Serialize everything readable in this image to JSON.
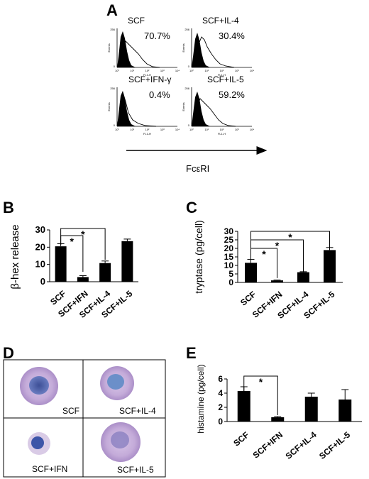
{
  "panel_letters": {
    "a": "A",
    "b": "B",
    "c": "C",
    "d": "D",
    "e": "E"
  },
  "flow": {
    "x_tick_labels": [
      "10⁰",
      "10¹",
      "10²",
      "10³",
      "10⁴"
    ],
    "x_axis_small_label": "FL1-H",
    "y_axis_small_label": "Events",
    "y_max_label": "256",
    "y_min_label": "0",
    "arrow_label": "FcεRI",
    "panels": [
      {
        "label": "SCF",
        "percent": "70.7%"
      },
      {
        "label": "SCF+IL-4",
        "percent": "30.4%"
      },
      {
        "label": "SCF+IFN-γ",
        "percent": "0.4%"
      },
      {
        "label": "SCF+IL-5",
        "percent": "59.2%"
      }
    ]
  },
  "chart_data": [
    {
      "id": "B",
      "type": "bar",
      "categories": [
        "SCF",
        "SCF+IFN",
        "SCF+IL-4",
        "SCF+IL-5"
      ],
      "values": [
        20.5,
        2.7,
        10.8,
        23.5
      ],
      "errors": [
        1.5,
        0.8,
        1.2,
        1.2
      ],
      "ylabel": "β-hex release",
      "ylim": [
        0,
        30
      ],
      "yticks": [
        0,
        10,
        20,
        30
      ],
      "significance": [
        {
          "from": "SCF",
          "to": "SCF+IFN",
          "label": "*"
        },
        {
          "from": "SCF",
          "to": "SCF+IL-4",
          "label": "*"
        }
      ]
    },
    {
      "id": "C",
      "type": "bar",
      "categories": [
        "SCF",
        "SCF+IFN",
        "SCF+IL-4",
        "SCF+IL-5"
      ],
      "values": [
        11.5,
        1.2,
        6.0,
        19.0
      ],
      "errors": [
        2.0,
        0.2,
        0.3,
        1.5
      ],
      "ylabel": "tryptase (pg/cell)",
      "ylim": [
        0,
        30
      ],
      "yticks": [
        0,
        5,
        10,
        15,
        20,
        25,
        30
      ],
      "significance": [
        {
          "from": "SCF",
          "to": "SCF+IFN",
          "label": "*"
        },
        {
          "from": "SCF",
          "to": "SCF+IL-4",
          "label": "*"
        },
        {
          "from": "SCF",
          "to": "SCF+IL-5",
          "label": "*"
        }
      ]
    },
    {
      "id": "E",
      "type": "bar",
      "categories": [
        "SCF",
        "SCF+IFN",
        "SCF+IL-4",
        "SCF+IL-5"
      ],
      "values": [
        4.3,
        0.6,
        3.5,
        3.1
      ],
      "errors": [
        0.6,
        0.1,
        0.5,
        1.4
      ],
      "ylabel": "histamine (pg/cell)",
      "ylim": [
        0,
        6
      ],
      "yticks": [
        0,
        2,
        4,
        6
      ],
      "significance": [
        {
          "from": "SCF",
          "to": "SCF+IFN",
          "label": "*"
        }
      ]
    }
  ],
  "micrographs": {
    "cells": [
      {
        "label": "SCF"
      },
      {
        "label": "SCF+IL-4"
      },
      {
        "label": "SCF+IFN"
      },
      {
        "label": "SCF+IL-5"
      }
    ]
  },
  "colors": {
    "bar": "#000000",
    "cell_cytoplasm": "#c9b4dd",
    "cell_nucleus": "#4a5fa8",
    "background": "#ffffff"
  }
}
